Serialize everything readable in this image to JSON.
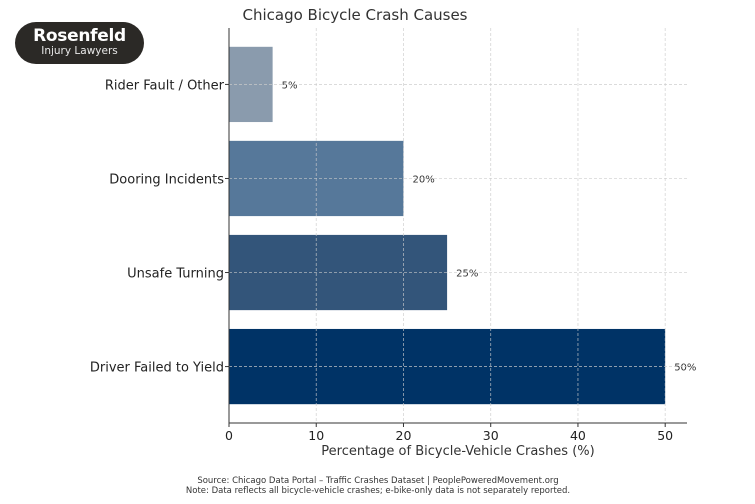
{
  "logo": {
    "name": "Rosenfeld",
    "tagline": "Injury Lawyers"
  },
  "footer": {
    "source": "Source: Chicago Data Portal – Traffic Crashes Dataset | PeoplePoweredMovement.org",
    "note": "Note: Data reflects all bicycle-vehicle crashes; e-bike-only data is not separately reported."
  },
  "chart_data": {
    "type": "bar",
    "orientation": "horizontal",
    "title": "Chicago Bicycle Crash Causes",
    "xlabel": "Percentage of Bicycle-Vehicle Crashes (%)",
    "ylabel": "",
    "categories": [
      "Driver Failed to Yield",
      "Unsafe Turning",
      "Dooring Incidents",
      "Rider Fault / Other"
    ],
    "values": [
      50,
      25,
      20,
      5
    ],
    "data_labels": [
      "50%",
      "25%",
      "20%",
      "5%"
    ],
    "colors": [
      "#003366",
      "#33557a",
      "#56789a",
      "#8a9bad"
    ],
    "xlim": [
      0,
      52.5
    ],
    "xticks": [
      0,
      10,
      20,
      30,
      40,
      50
    ],
    "grid": true
  }
}
